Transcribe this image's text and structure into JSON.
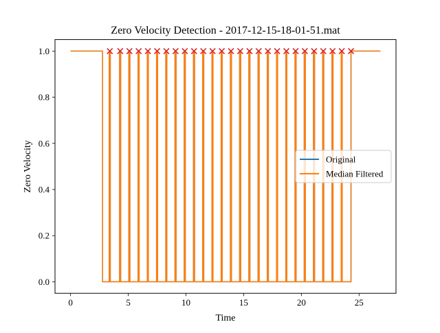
{
  "chart_data": {
    "type": "line",
    "title": "Zero Velocity Detection - 2017-12-15-18-01-51.mat",
    "xlabel": "Time",
    "ylabel": "Zero Velocity",
    "xlim": [
      -1.35,
      28.2
    ],
    "ylim": [
      -0.05,
      1.05
    ],
    "xticks": [
      0,
      5,
      10,
      15,
      20,
      25
    ],
    "yticks": [
      0.0,
      0.2,
      0.4,
      0.6,
      0.8,
      1.0
    ],
    "xtick_labels": [
      "0",
      "5",
      "10",
      "15",
      "20",
      "25"
    ],
    "ytick_labels": [
      "0.0",
      "0.2",
      "0.4",
      "0.6",
      "0.8",
      "1.0"
    ],
    "grid": false,
    "legend_position": "center-right",
    "series": [
      {
        "name": "Original",
        "color": "#1f77b4",
        "x": [
          0.0,
          2.77,
          2.77,
          3.35,
          3.35,
          3.44,
          3.44,
          4.25,
          4.25,
          4.34,
          4.34,
          5.05,
          5.05,
          5.14,
          5.14,
          5.85,
          5.85,
          5.94,
          5.94,
          6.65,
          6.65,
          6.74,
          6.74,
          7.45,
          7.45,
          7.54,
          7.54,
          8.25,
          8.25,
          8.34,
          8.34,
          9.05,
          9.05,
          9.14,
          9.14,
          9.85,
          9.85,
          9.94,
          9.94,
          10.65,
          10.65,
          10.74,
          10.74,
          11.45,
          11.45,
          11.54,
          11.54,
          12.25,
          12.25,
          12.34,
          12.34,
          13.05,
          13.05,
          13.14,
          13.14,
          13.85,
          13.85,
          13.94,
          13.94,
          14.65,
          14.65,
          14.74,
          14.74,
          15.45,
          15.45,
          15.54,
          15.54,
          16.25,
          16.25,
          16.34,
          16.34,
          17.05,
          17.05,
          17.14,
          17.14,
          17.85,
          17.85,
          17.94,
          17.94,
          18.65,
          18.65,
          18.74,
          18.74,
          19.45,
          19.45,
          19.54,
          19.54,
          20.25,
          20.25,
          20.34,
          20.34,
          21.05,
          21.05,
          21.14,
          21.14,
          21.85,
          21.85,
          21.94,
          21.94,
          22.65,
          22.65,
          22.74,
          22.74,
          23.45,
          23.45,
          23.54,
          23.54,
          24.3,
          24.3,
          26.85
        ],
        "y": [
          1,
          1,
          0,
          0,
          1,
          1,
          0,
          0,
          1,
          1,
          0,
          0,
          1,
          1,
          0,
          0,
          1,
          1,
          0,
          0,
          1,
          1,
          0,
          0,
          1,
          1,
          0,
          0,
          1,
          1,
          0,
          0,
          1,
          1,
          0,
          0,
          1,
          1,
          0,
          0,
          1,
          1,
          0,
          0,
          1,
          1,
          0,
          0,
          1,
          1,
          0,
          0,
          1,
          1,
          0,
          0,
          1,
          1,
          0,
          0,
          1,
          1,
          0,
          0,
          1,
          1,
          0,
          0,
          1,
          1,
          0,
          0,
          1,
          1,
          0,
          0,
          1,
          1,
          0,
          0,
          1,
          1,
          0,
          0,
          1,
          1,
          0,
          0,
          1,
          1,
          0,
          0,
          1,
          1,
          0,
          0,
          1,
          1,
          0,
          0,
          1,
          1,
          0,
          0,
          1,
          1,
          0,
          0,
          1,
          1
        ]
      },
      {
        "name": "Median Filtered",
        "color": "#ff7f0e",
        "x": [
          0.0,
          2.77,
          2.77,
          3.35,
          3.35,
          3.44,
          3.44,
          4.25,
          4.25,
          4.34,
          4.34,
          5.05,
          5.05,
          5.14,
          5.14,
          5.85,
          5.85,
          5.94,
          5.94,
          6.65,
          6.65,
          6.74,
          6.74,
          7.45,
          7.45,
          7.54,
          7.54,
          8.25,
          8.25,
          8.34,
          8.34,
          9.05,
          9.05,
          9.14,
          9.14,
          9.85,
          9.85,
          9.94,
          9.94,
          10.65,
          10.65,
          10.74,
          10.74,
          11.45,
          11.45,
          11.54,
          11.54,
          12.25,
          12.25,
          12.34,
          12.34,
          13.05,
          13.05,
          13.14,
          13.14,
          13.85,
          13.85,
          13.94,
          13.94,
          14.65,
          14.65,
          14.74,
          14.74,
          15.45,
          15.45,
          15.54,
          15.54,
          16.25,
          16.25,
          16.34,
          16.34,
          17.05,
          17.05,
          17.14,
          17.14,
          17.85,
          17.85,
          17.94,
          17.94,
          18.65,
          18.65,
          18.74,
          18.74,
          19.45,
          19.45,
          19.54,
          19.54,
          20.25,
          20.25,
          20.34,
          20.34,
          21.05,
          21.05,
          21.14,
          21.14,
          21.85,
          21.85,
          21.94,
          21.94,
          22.65,
          22.65,
          22.74,
          22.74,
          23.45,
          23.45,
          23.54,
          23.54,
          24.3,
          24.3,
          26.85
        ],
        "y": [
          1,
          1,
          0,
          0,
          1,
          1,
          0,
          0,
          1,
          1,
          0,
          0,
          1,
          1,
          0,
          0,
          1,
          1,
          0,
          0,
          1,
          1,
          0,
          0,
          1,
          1,
          0,
          0,
          1,
          1,
          0,
          0,
          1,
          1,
          0,
          0,
          1,
          1,
          0,
          0,
          1,
          1,
          0,
          0,
          1,
          1,
          0,
          0,
          1,
          1,
          0,
          0,
          1,
          1,
          0,
          0,
          1,
          1,
          0,
          0,
          1,
          1,
          0,
          0,
          1,
          1,
          0,
          0,
          1,
          1,
          0,
          0,
          1,
          1,
          0,
          0,
          1,
          1,
          0,
          0,
          1,
          1,
          0,
          0,
          1,
          1,
          0,
          0,
          1,
          1,
          0,
          0,
          1,
          1,
          0,
          0,
          1,
          1,
          0,
          0,
          1,
          1,
          0,
          0,
          1,
          1,
          0,
          0,
          1,
          1
        ]
      }
    ],
    "markers": {
      "color": "#d62728",
      "symbol": "x",
      "x": [
        3.4,
        4.3,
        5.1,
        5.9,
        6.7,
        7.5,
        8.3,
        9.1,
        9.9,
        10.7,
        11.5,
        12.3,
        13.1,
        13.9,
        14.7,
        15.5,
        16.3,
        17.1,
        17.9,
        18.7,
        19.5,
        20.3,
        21.1,
        21.9,
        22.7,
        23.5,
        24.3
      ],
      "y": [
        1,
        1,
        1,
        1,
        1,
        1,
        1,
        1,
        1,
        1,
        1,
        1,
        1,
        1,
        1,
        1,
        1,
        1,
        1,
        1,
        1,
        1,
        1,
        1,
        1,
        1,
        1
      ]
    }
  }
}
